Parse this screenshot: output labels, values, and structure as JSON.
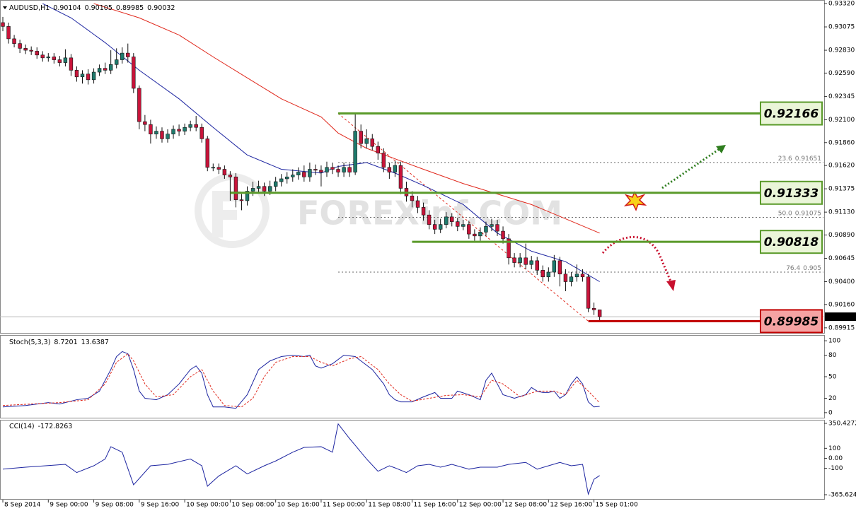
{
  "chart_data": [
    {
      "type": "candlestick",
      "title": "AUDUSD,H1",
      "watermark": "FOREXinf.COM",
      "up_color": "#1f7a6c",
      "down_color": "#c8143a",
      "open": [
        0.9312,
        0.9308,
        0.9295,
        0.929,
        0.9285,
        0.9283,
        0.9282,
        0.9278,
        0.9275,
        0.9276,
        0.9273,
        0.927,
        0.9275,
        0.9262,
        0.9255,
        0.9258,
        0.9252,
        0.926,
        0.9264,
        0.9262,
        0.9268,
        0.9273,
        0.928,
        0.9276,
        0.9243,
        0.9208,
        0.9205,
        0.9195,
        0.9198,
        0.919,
        0.9195,
        0.92,
        0.9198,
        0.9202,
        0.9205,
        0.9202,
        0.919,
        0.916,
        0.916,
        0.9158,
        0.9152,
        0.915,
        0.9126,
        0.9125,
        0.9135,
        0.9138,
        0.914,
        0.9135,
        0.914,
        0.9145,
        0.9148,
        0.915,
        0.9152,
        0.9155,
        0.915,
        0.9158,
        0.9157,
        0.9155,
        0.916,
        0.9158,
        0.9155,
        0.916,
        0.9155,
        0.9198,
        0.9185,
        0.919,
        0.9182,
        0.9175,
        0.916,
        0.9155,
        0.9162,
        0.9138,
        0.913,
        0.9125,
        0.9118,
        0.911,
        0.91,
        0.9095,
        0.91,
        0.9108,
        0.9103,
        0.9098,
        0.91,
        0.909,
        0.9088,
        0.9092,
        0.9098,
        0.91,
        0.9093,
        0.9085,
        0.9065,
        0.906,
        0.9065,
        0.9058,
        0.9062,
        0.9052,
        0.9045,
        0.905,
        0.9062,
        0.9048,
        0.904,
        0.9045,
        0.9048,
        0.9045,
        0.9012,
        0.90104
      ],
      "high": [
        0.9318,
        0.9312,
        0.9299,
        0.9294,
        0.9289,
        0.9287,
        0.9286,
        0.9282,
        0.928,
        0.928,
        0.9277,
        0.9284,
        0.9279,
        0.9266,
        0.9262,
        0.9263,
        0.9264,
        0.9268,
        0.927,
        0.9283,
        0.9285,
        0.9286,
        0.929,
        0.928,
        0.9246,
        0.9215,
        0.921,
        0.9203,
        0.9202,
        0.92,
        0.9204,
        0.9205,
        0.9206,
        0.9209,
        0.9214,
        0.9206,
        0.9193,
        0.9164,
        0.9164,
        0.9162,
        0.9156,
        0.9154,
        0.9132,
        0.914,
        0.9145,
        0.9146,
        0.9144,
        0.9146,
        0.915,
        0.9153,
        0.9155,
        0.9158,
        0.916,
        0.9162,
        0.9165,
        0.9163,
        0.9162,
        0.9166,
        0.9165,
        0.9162,
        0.9165,
        0.9164,
        0.9216,
        0.9205,
        0.92,
        0.9195,
        0.9187,
        0.918,
        0.9165,
        0.9167,
        0.9166,
        0.9145,
        0.9135,
        0.913,
        0.9123,
        0.9115,
        0.9105,
        0.9106,
        0.9113,
        0.9112,
        0.9107,
        0.9105,
        0.9104,
        0.9095,
        0.9097,
        0.9103,
        0.9106,
        0.9105,
        0.9098,
        0.909,
        0.907,
        0.907,
        0.908,
        0.9067,
        0.9066,
        0.9057,
        0.9055,
        0.9068,
        0.9066,
        0.9053,
        0.905,
        0.9058,
        0.9053,
        0.9048,
        0.9018,
        0.90105
      ],
      "low": [
        0.9303,
        0.929,
        0.9286,
        0.928,
        0.9279,
        0.9278,
        0.9274,
        0.9271,
        0.9271,
        0.9269,
        0.9266,
        0.9266,
        0.9256,
        0.925,
        0.9248,
        0.9247,
        0.9248,
        0.9256,
        0.9258,
        0.9258,
        0.9264,
        0.9269,
        0.927,
        0.9238,
        0.92,
        0.9198,
        0.9185,
        0.919,
        0.9186,
        0.9186,
        0.919,
        0.9193,
        0.9194,
        0.9198,
        0.9198,
        0.9186,
        0.9156,
        0.9156,
        0.9153,
        0.9148,
        0.9125,
        0.9118,
        0.9115,
        0.912,
        0.913,
        0.9133,
        0.913,
        0.9131,
        0.9135,
        0.914,
        0.9143,
        0.9145,
        0.9147,
        0.9145,
        0.9145,
        0.9152,
        0.914,
        0.915,
        0.9153,
        0.915,
        0.915,
        0.915,
        0.9152,
        0.918,
        0.918,
        0.9178,
        0.9168,
        0.9155,
        0.9148,
        0.915,
        0.9132,
        0.9124,
        0.9118,
        0.9112,
        0.9104,
        0.9095,
        0.909,
        0.9091,
        0.9096,
        0.9098,
        0.9093,
        0.9094,
        0.9085,
        0.9083,
        0.9083,
        0.9088,
        0.9093,
        0.9088,
        0.908,
        0.9058,
        0.9055,
        0.9055,
        0.9053,
        0.9053,
        0.9047,
        0.904,
        0.904,
        0.9045,
        0.9035,
        0.903,
        0.9035,
        0.904,
        0.904,
        0.9008,
        0.9005,
        0.89985
      ],
      "close": [
        0.9308,
        0.9295,
        0.929,
        0.9285,
        0.9283,
        0.9282,
        0.9278,
        0.9275,
        0.9276,
        0.9273,
        0.927,
        0.9275,
        0.9262,
        0.9255,
        0.9258,
        0.9252,
        0.926,
        0.9264,
        0.9262,
        0.9268,
        0.9273,
        0.928,
        0.9276,
        0.9243,
        0.9208,
        0.9205,
        0.9195,
        0.9198,
        0.919,
        0.9195,
        0.92,
        0.9198,
        0.9202,
        0.9205,
        0.9202,
        0.919,
        0.916,
        0.916,
        0.9158,
        0.9152,
        0.915,
        0.9126,
        0.9125,
        0.9135,
        0.9138,
        0.914,
        0.9135,
        0.914,
        0.9145,
        0.9148,
        0.915,
        0.9152,
        0.9155,
        0.915,
        0.9158,
        0.9157,
        0.9155,
        0.916,
        0.9158,
        0.9155,
        0.916,
        0.9155,
        0.9198,
        0.9185,
        0.919,
        0.9182,
        0.9175,
        0.916,
        0.9155,
        0.9162,
        0.9138,
        0.913,
        0.9125,
        0.9118,
        0.911,
        0.91,
        0.9095,
        0.91,
        0.9108,
        0.9103,
        0.9098,
        0.91,
        0.909,
        0.9088,
        0.9092,
        0.9098,
        0.91,
        0.9093,
        0.9085,
        0.9065,
        0.906,
        0.9065,
        0.9058,
        0.9062,
        0.9052,
        0.9045,
        0.905,
        0.9062,
        0.9048,
        0.904,
        0.9045,
        0.9048,
        0.9045,
        0.9012,
        0.90104,
        0.90032
      ],
      "lines": [
        {
          "color": "#1c24a0",
          "x": [
            7,
            12,
            18,
            24,
            31,
            37,
            43,
            49,
            56,
            59,
            64,
            69,
            74,
            81,
            87,
            93,
            99,
            105
          ],
          "values": [
            0.9332,
            0.9317,
            0.9291,
            0.9262,
            0.9232,
            0.9202,
            0.9173,
            0.9158,
            0.9154,
            0.9161,
            0.9165,
            0.9154,
            0.9141,
            0.9121,
            0.9091,
            0.9072,
            0.9061,
            0.904
          ]
        },
        {
          "color": "#e0281c",
          "x": [
            16,
            24,
            31,
            37,
            43,
            49,
            56,
            59,
            64,
            69,
            74,
            81,
            87,
            93,
            99,
            105
          ],
          "values": [
            0.9332,
            0.9317,
            0.9299,
            0.9276,
            0.9254,
            0.9232,
            0.9213,
            0.9196,
            0.918,
            0.9169,
            0.9158,
            0.9143,
            0.9132,
            0.9121,
            0.9106,
            0.9091
          ]
        }
      ],
      "fib": {
        "color": "#e0281c",
        "x": [
          59,
          103
        ],
        "y": [
          0.92166,
          0.89985
        ],
        "levels": [
          {
            "ratio": "23.6",
            "value": 0.91651
          },
          {
            "ratio": "50.0",
            "value": 0.91075
          },
          {
            "ratio": "76.4",
            "value": 0.905
          }
        ]
      },
      "levels": [
        {
          "value": 0.92166,
          "x": 59,
          "color": "#5a9a2a",
          "fill": "#eaf5d8"
        },
        {
          "value": 0.91333,
          "x": 40,
          "color": "#5a9a2a",
          "fill": "#eaf5d8"
        },
        {
          "value": 0.90818,
          "x": 72,
          "color": "#5a9a2a",
          "fill": "#eaf5d8"
        },
        {
          "value": 0.89985,
          "x": 103,
          "color": "#c00000",
          "fill": "#f5a3a3"
        }
      ],
      "xlim": [
        -0.5,
        144.5
      ],
      "xticks": [
        {
          "value": 0,
          "label": "8 Sep 2014"
        },
        {
          "value": 8,
          "label": "9 Sep 00:00"
        },
        {
          "value": 16,
          "label": "9 Sep 08:00"
        },
        {
          "value": 24,
          "label": "9 Sep 16:00"
        },
        {
          "value": 32,
          "label": "10 Sep 00:00"
        },
        {
          "value": 40,
          "label": "10 Sep 08:00"
        },
        {
          "value": 48,
          "label": "10 Sep 16:00"
        },
        {
          "value": 56,
          "label": "11 Sep 00:00"
        },
        {
          "value": 64,
          "label": "11 Sep 08:00"
        },
        {
          "value": 72,
          "label": "11 Sep 16:00"
        },
        {
          "value": 80,
          "label": "12 Sep 00:00"
        },
        {
          "value": 88,
          "label": "12 Sep 08:00"
        },
        {
          "value": 96,
          "label": "12 Sep 16:00"
        },
        {
          "value": 104,
          "label": "15 Sep 01:00"
        }
      ],
      "ylim": [
        0.89862,
        0.9335
      ],
      "yticks": [
        {
          "value": 0.9332,
          "label": "0.93320"
        },
        0.93075,
        {
          "value": 0.9283,
          "label": "0.92830"
        },
        {
          "value": 0.9259,
          "label": "0.92590"
        },
        0.92345,
        {
          "value": 0.921,
          "label": "0.92100"
        },
        {
          "value": 0.9186,
          "label": "0.91860"
        },
        {
          "value": 0.9162,
          "label": "0.91620"
        },
        0.91375,
        {
          "value": 0.9113,
          "label": "0.91130"
        },
        {
          "value": 0.9089,
          "label": "0.90890"
        },
        0.90645,
        {
          "value": 0.904,
          "label": "0.90400"
        },
        {
          "value": 0.9016,
          "label": "0.90160"
        },
        0.89915
      ]
    },
    {
      "type": "line",
      "title": "Stoch(5,3,3)",
      "series": [
        {
          "color": "#1c24a0",
          "dash": false,
          "x": [
            0,
            4,
            8,
            10,
            13,
            15,
            17,
            19,
            20,
            21,
            22,
            23,
            24,
            25,
            27,
            29,
            31,
            33,
            34,
            35,
            36,
            37,
            39,
            41,
            43,
            45,
            47,
            49,
            51,
            53,
            54,
            55,
            56,
            58,
            60,
            62,
            63,
            65,
            67,
            68,
            69,
            70,
            72,
            74,
            76,
            77,
            79,
            80,
            82,
            84,
            85,
            86,
            87,
            88,
            90,
            92,
            93,
            94,
            95,
            96,
            97,
            98,
            99,
            100,
            101,
            102,
            103,
            104,
            105
          ],
          "values": [
            8,
            10,
            14,
            12,
            18,
            20,
            30,
            60,
            78,
            85,
            82,
            60,
            30,
            20,
            18,
            25,
            40,
            60,
            65,
            55,
            25,
            8,
            8,
            6,
            25,
            60,
            72,
            78,
            80,
            78,
            80,
            65,
            62,
            68,
            80,
            78,
            72,
            60,
            40,
            25,
            18,
            15,
            15,
            22,
            28,
            20,
            20,
            30,
            25,
            18,
            45,
            55,
            40,
            25,
            20,
            25,
            35,
            30,
            28,
            28,
            30,
            20,
            25,
            40,
            50,
            40,
            15,
            8,
            8.7201
          ]
        },
        {
          "color": "#e0281c",
          "dash": true,
          "x": [
            0,
            5,
            10,
            15,
            18,
            20,
            22,
            23,
            25,
            27,
            30,
            33,
            35,
            37,
            39,
            42,
            44,
            46,
            48,
            51,
            54,
            56,
            58,
            61,
            63,
            66,
            68,
            70,
            72,
            75,
            78,
            81,
            84,
            86,
            88,
            91,
            94,
            97,
            99,
            101,
            103,
            105
          ],
          "values": [
            10,
            12,
            14,
            18,
            40,
            70,
            82,
            72,
            40,
            22,
            25,
            50,
            60,
            30,
            10,
            8,
            20,
            50,
            70,
            78,
            78,
            70,
            65,
            75,
            78,
            60,
            40,
            25,
            16,
            20,
            24,
            25,
            22,
            45,
            40,
            22,
            30,
            30,
            25,
            45,
            30,
            13.6387
          ]
        }
      ],
      "ylim": [
        -7,
        108
      ],
      "yticks": [
        100,
        80,
        50,
        20,
        0
      ]
    },
    {
      "type": "line",
      "title": "CCI(14)",
      "series": [
        {
          "color": "#1c24a0",
          "dash": false,
          "x": [
            0,
            4,
            11,
            13,
            16,
            18,
            19,
            21,
            23,
            26,
            29,
            33,
            35,
            36,
            38,
            41,
            43,
            46,
            48,
            51,
            53,
            56,
            58,
            59,
            61,
            62,
            64,
            66,
            68,
            69,
            71,
            73,
            75,
            77,
            79,
            82,
            84,
            87,
            89,
            92,
            94,
            96,
            98,
            100,
            102,
            103,
            104,
            105
          ],
          "values": [
            -109,
            -89,
            -61,
            -143,
            -75,
            -7,
            116,
            61,
            -266,
            -75,
            -61,
            -7,
            -75,
            -280,
            -177,
            -75,
            -157,
            -75,
            -27,
            61,
            109,
            116,
            61,
            345,
            198,
            130,
            -7,
            -130,
            -75,
            -96,
            -143,
            -75,
            -61,
            -89,
            -61,
            -109,
            -89,
            -89,
            -61,
            -41,
            -109,
            -75,
            -41,
            -75,
            -61,
            -360,
            -211,
            -172.8263
          ]
        }
      ],
      "ylim": [
        -365.6243,
        350.4272
      ],
      "yticks": [
        350.4272,
        100,
        {
          "value": 0,
          "label": "0.00"
        },
        -100,
        -365.6243
      ]
    }
  ]
}
